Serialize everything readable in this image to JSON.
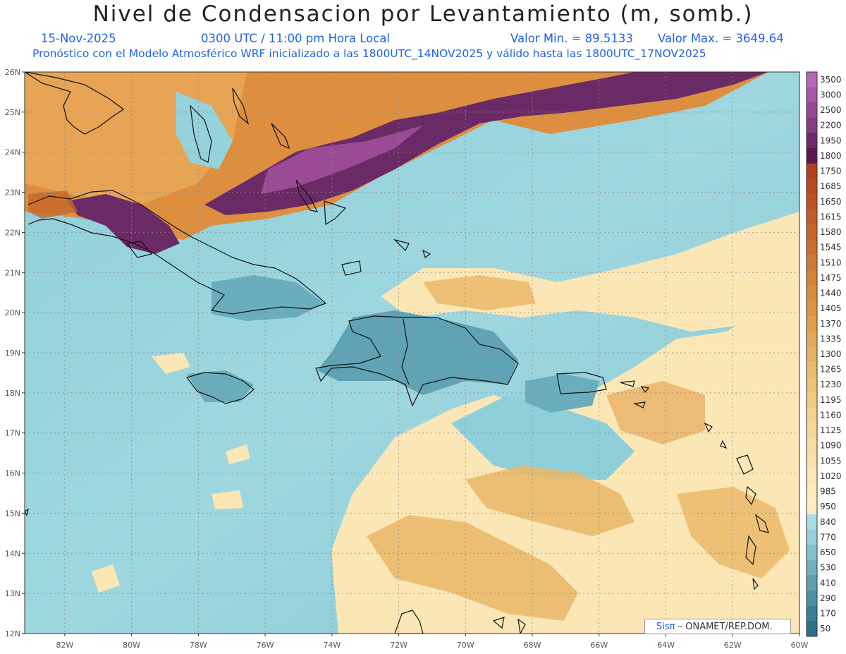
{
  "title": "Nivel de Condensacion por Levantamiento (m, somb.)",
  "header": {
    "date": "15-Nov-2025",
    "time": "0300 UTC / 11:00 pm Hora Local",
    "min_value": "Valor Min. = 89.5133",
    "max_value": "Valor Max. = 3649.64",
    "model_info": "Pronóstico con el Modelo Atmosférico WRF inicializado a las 1800UTC_14NOV2025 y válido hasta las  1800UTC_17NOV2025"
  },
  "credit": {
    "sis": "Sis",
    "pi": "π",
    "rest": " – ONAMET/REP.DOM."
  },
  "map": {
    "lon_range": [
      -83.2,
      -60
    ],
    "lat_range": [
      12,
      26
    ],
    "lon_ticks": [
      "82W",
      "80W",
      "78W",
      "76W",
      "74W",
      "72W",
      "70W",
      "68W",
      "66W",
      "64W",
      "62W",
      "60W"
    ],
    "lat_ticks": [
      "26N",
      "25N",
      "24N",
      "23N",
      "22N",
      "21N",
      "20N",
      "19N",
      "18N",
      "17N",
      "16N",
      "15N",
      "14N",
      "13N",
      "12N"
    ],
    "grid": true
  },
  "colorbar": {
    "levels": [
      "3500",
      "3000",
      "2500",
      "2200",
      "1950",
      "1800",
      "1750",
      "1685",
      "1650",
      "1615",
      "1580",
      "1545",
      "1510",
      "1475",
      "1440",
      "1405",
      "1370",
      "1335",
      "1300",
      "1265",
      "1230",
      "1195",
      "1160",
      "1125",
      "1090",
      "1055",
      "1020",
      "985",
      "950",
      "840",
      "770",
      "650",
      "530",
      "410",
      "290",
      "170",
      "50"
    ],
    "colors": [
      "#b766b8",
      "#a856aa",
      "#954794",
      "#853a83",
      "#6e2868",
      "#561a4f",
      "#b2401c",
      "#b74a1f",
      "#bc5322",
      "#c25c26",
      "#c6662a",
      "#cb6f2f",
      "#d07934",
      "#d4823a",
      "#d88c40",
      "#dc9547",
      "#e09f4f",
      "#e4a958",
      "#e7b261",
      "#eabb6b",
      "#edc376",
      "#f0cb81",
      "#f3d28c",
      "#f5d897",
      "#f7dda1",
      "#f9e2ab",
      "#fbe6b4",
      "#fde9bc",
      "#fdecc4",
      "#a8dde6",
      "#95cfd9",
      "#82c0cc",
      "#6fb0bf",
      "#5ca0b1",
      "#4a90a3",
      "#3b8096",
      "#2d6f88"
    ]
  }
}
